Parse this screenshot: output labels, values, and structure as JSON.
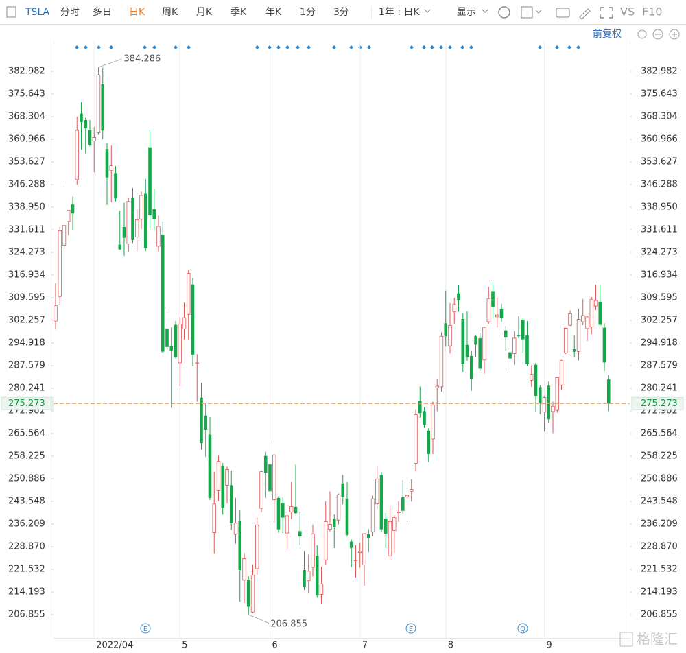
{
  "toolbar": {
    "symbol": "TSLA",
    "items": [
      "分时",
      "多日",
      "日K",
      "周K",
      "月K",
      "季K",
      "年K",
      "1分",
      "3分"
    ],
    "active": "日K",
    "period": "1年 : 日K",
    "display": "显示",
    "vs": "VS",
    "f10": "F10",
    "adjust": "前复权"
  },
  "chart_data": {
    "type": "candlestick",
    "categories": [
      null,
      null,
      null,
      null,
      null,
      null,
      null,
      null,
      null,
      "2022/04",
      null,
      null,
      null,
      null,
      null,
      null,
      null,
      null,
      null,
      null,
      null,
      null,
      null,
      null,
      null,
      null,
      null,
      null,
      null,
      "5",
      null,
      null,
      null,
      null,
      null,
      null,
      null,
      null,
      null,
      null,
      null,
      null,
      null,
      null,
      null,
      null,
      null,
      null,
      null,
      null,
      "6",
      null,
      null,
      null,
      null,
      null,
      null,
      null,
      null,
      null,
      null,
      null,
      null,
      null,
      null,
      null,
      null,
      null,
      null,
      null,
      null,
      "7",
      null,
      null,
      null,
      null,
      null,
      null,
      null,
      null,
      null,
      null,
      null,
      null,
      null,
      null,
      null,
      null,
      null,
      null,
      null,
      "8",
      null,
      null,
      null,
      null,
      null,
      null,
      null,
      null,
      null,
      null,
      null,
      null,
      null,
      null,
      null,
      null,
      null,
      null,
      null,
      null,
      null,
      null,
      "9",
      null,
      null,
      null,
      null,
      null,
      null,
      null,
      null,
      null,
      null,
      null,
      null,
      null,
      null,
      null
    ],
    "open": [
      302.0,
      310.0,
      326.6,
      334.3,
      339.8,
      347.9,
      369.3,
      367.2,
      363.9,
      360.4,
      363.1,
      378.8,
      357.8,
      350.8,
      350.0,
      326.8,
      332.5,
      327.0,
      342.1,
      329.3,
      335.0,
      343.3,
      358.2,
      338.3,
      326.3,
      330.0,
      299.5,
      294.0,
      300.8,
      288.5,
      299.5,
      304.2,
      313.9,
      288.4,
      277.2,
      271.4,
      265.2,
      233.4,
      247.0,
      255.0,
      248.8,
      248.8,
      232.9,
      237.1,
      218.0,
      218.2,
      207.7,
      221.8,
      241.3,
      258.3,
      255.6,
      244.1,
      244.7,
      243.0,
      233.3,
      240.1,
      241.8,
      233.9,
      221.3,
      217.8,
      222.2,
      225.9,
      213.4,
      224.6,
      234.5,
      237.9,
      237.5,
      249.4,
      244.5,
      230.5,
      224.5,
      227.0,
      223.0,
      232.9,
      233.6,
      242.8,
      252.1,
      238.0,
      225.9,
      234.1,
      240.0,
      244.9,
      245.0,
      246.8,
      255.9,
      276.2,
      272.8,
      266.5,
      263.8,
      280.4,
      280.7,
      301.3,
      294.0,
      305.0,
      311.0,
      302.7,
      294.3,
      290.7,
      297.1,
      296.5,
      289.4,
      301.8,
      311.7,
      303.4,
      306.0,
      299.0,
      291.9,
      291.5,
      297.6,
      302.4,
      297.4,
      282.8,
      287.9,
      280.6,
      272.6,
      281.1,
      272.7,
      273.1,
      281.3,
      291.7,
      300.7,
      292.9,
      292.2,
      301.8,
      299.6,
      300.1,
      306.9,
      308.3,
      299.9,
      283.1
    ],
    "high": [
      314.3,
      332.6,
      346.9,
      338.0,
      342.4,
      368.3,
      373.0,
      368.0,
      367.2,
      364.9,
      384.3,
      384.2,
      359.7,
      358.9,
      352.3,
      337.8,
      340.4,
      342.1,
      345.2,
      338.3,
      344.0,
      348.0,
      364.1,
      344.9,
      336.2,
      334.3,
      306.0,
      300.0,
      302.1,
      303.3,
      308.0,
      318.5,
      316.0,
      291.3,
      281.9,
      275.1,
      270.9,
      253.2,
      258.3,
      256.0,
      254.8,
      253.5,
      244.7,
      240.6,
      226.8,
      219.2,
      223.1,
      238.3,
      253.6,
      259.6,
      262.6,
      258.9,
      245.3,
      244.9,
      239.5,
      249.9,
      255.5,
      240.2,
      227.4,
      226.3,
      236.0,
      229.3,
      222.4,
      243.6,
      246.8,
      239.3,
      246.1,
      252.1,
      249.9,
      231.2,
      229.3,
      230.2,
      233.1,
      234.6,
      245.4,
      254.9,
      253.1,
      239.8,
      242.1,
      239.0,
      243.6,
      250.5,
      247.1,
      250.7,
      273.3,
      280.8,
      274.1,
      267.3,
      275.9,
      283.3,
      298.3,
      311.9,
      307.8,
      309.6,
      313.6,
      304.6,
      305.2,
      292.4,
      297.5,
      298.2,
      300.2,
      313.1,
      314.7,
      309.7,
      307.7,
      300.4,
      292.4,
      298.8,
      303.6,
      302.9,
      302.0,
      287.7,
      288.5,
      281.2,
      277.6,
      282.4,
      275.9,
      283.8,
      289.5,
      299.9,
      305.5,
      297.4,
      306.0,
      309.1,
      303.7,
      309.8,
      313.8,
      313.8,
      301.3,
      284.5
    ],
    "low": [
      299.3,
      307.3,
      325.4,
      329.9,
      331.4,
      346.2,
      357.6,
      356.4,
      358.7,
      350.3,
      362.4,
      361.0,
      339.7,
      340.5,
      340.8,
      325.1,
      323.2,
      324.4,
      327.3,
      324.5,
      331.8,
      324.7,
      332.3,
      331.3,
      324.5,
      291.7,
      292.8,
      273.9,
      289.8,
      280.9,
      296.0,
      295.9,
      287.4,
      275.9,
      260.4,
      258.1,
      244.0,
      226.7,
      243.7,
      239.2,
      242.9,
      234.3,
      229.8,
      211.0,
      210.6,
      206.9,
      207.3,
      219.8,
      240.0,
      244.7,
      244.8,
      236.7,
      233.4,
      233.3,
      228.0,
      237.8,
      239.3,
      229.4,
      214.8,
      213.9,
      219.2,
      212.3,
      210.3,
      223.0,
      233.8,
      228.4,
      236.1,
      242.6,
      232.3,
      222.3,
      218.9,
      222.1,
      216.2,
      227.0,
      232.2,
      241.2,
      233.6,
      228.4,
      225.0,
      226.9,
      236.9,
      239.6,
      236.9,
      243.5,
      253.3,
      270.7,
      267.4,
      256.3,
      258.9,
      272.8,
      279.1,
      293.7,
      291.5,
      301.2,
      305.0,
      285.5,
      289.1,
      279.4,
      290.5,
      285.8,
      285.0,
      301.2,
      302.9,
      300.0,
      301.8,
      292.5,
      286.3,
      287.9,
      296.5,
      291.6,
      287.5,
      280.7,
      272.7,
      271.8,
      266.2,
      269.1,
      265.7,
      272.3,
      279.8,
      291.3,
      300.4,
      290.4,
      289.3,
      300.7,
      295.6,
      297.8,
      305.6,
      300.4,
      285.8,
      272.8
    ],
    "close": [
      307.0,
      331.3,
      333.0,
      338.0,
      336.9,
      363.9,
      366.5,
      364.6,
      359.2,
      361.5,
      381.8,
      363.8,
      348.6,
      352.4,
      341.8,
      325.3,
      329.0,
      340.8,
      328.3,
      334.8,
      342.7,
      325.7,
      336.3,
      335.0,
      332.7,
      292.1,
      293.6,
      292.5,
      290.3,
      301.0,
      303.1,
      317.5,
      291.1,
      288.5,
      262.4,
      266.7,
      244.7,
      242.7,
      256.5,
      241.5,
      253.9,
      236.5,
      236.5,
      221.3,
      225.0,
      209.4,
      219.6,
      235.9,
      253.2,
      252.8,
      246.8,
      258.5,
      234.5,
      238.3,
      238.9,
      241.9,
      239.7,
      232.2,
      215.7,
      220.9,
      233.0,
      213.1,
      216.8,
      237.0,
      236.1,
      235.1,
      245.7,
      244.9,
      232.7,
      228.5,
      224.5,
      227.3,
      233.1,
      231.7,
      244.4,
      250.8,
      234.5,
      233.1,
      237.0,
      238.3,
      240.1,
      240.5,
      245.5,
      247.4,
      271.7,
      272.2,
      268.4,
      258.9,
      274.8,
      280.9,
      297.1,
      297.1,
      300.6,
      307.4,
      308.7,
      288.2,
      290.4,
      283.3,
      294.4,
      286.6,
      300.0,
      309.3,
      306.6,
      304.0,
      302.9,
      296.7,
      289.9,
      296.5,
      297.1,
      296.1,
      288.1,
      284.8,
      277.7,
      275.6,
      277.2,
      270.2,
      274.4,
      283.7,
      289.3,
      299.7,
      304.4,
      292.1,
      302.6,
      303.8,
      303.4,
      309.1,
      308.7,
      300.8,
      288.6,
      275.3
    ],
    "up_color": "#e05555",
    "down_color": "#14a84a",
    "ylim": [
      204.85,
      392.77
    ],
    "yticks": [
      382.982,
      375.643,
      368.304,
      360.966,
      353.627,
      346.288,
      {
        "value": 338.95,
        "label": "338.950"
      },
      331.611,
      324.273,
      316.934,
      309.595,
      302.257,
      294.918,
      287.579,
      280.241,
      272.902,
      265.564,
      258.225,
      250.886,
      243.548,
      236.209,
      {
        "value": 228.87,
        "label": "228.870"
      },
      221.532,
      214.193,
      206.855
    ],
    "last_price": 275.273,
    "last_price_color": "#e0a060",
    "annotations": [
      384.286,
      206.855
    ],
    "events": [
      "E",
      "E",
      "Q"
    ]
  },
  "watermark": "格隆汇"
}
